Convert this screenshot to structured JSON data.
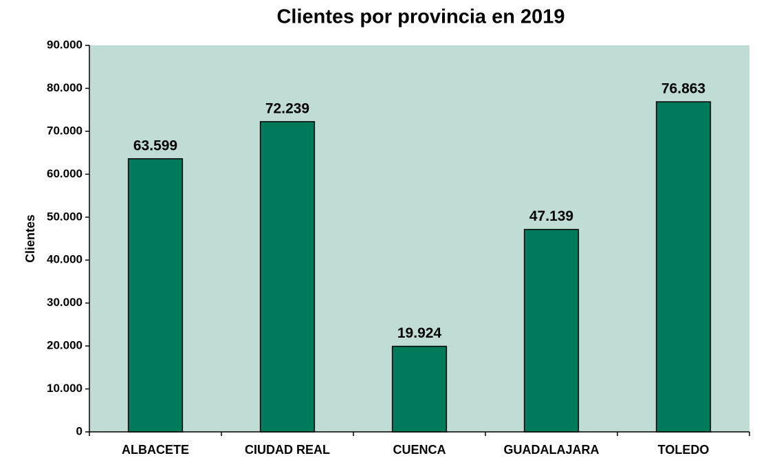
{
  "chart_data": {
    "type": "bar",
    "title": "Clientes por provincia en 2019",
    "y_label": "Clientes",
    "categories": [
      "ALBACETE",
      "CIUDAD REAL",
      "CUENCA",
      "GUADALAJARA",
      "TOLEDO"
    ],
    "values": [
      63599,
      72239,
      19924,
      47139,
      76863
    ],
    "value_labels": [
      "63.599",
      "72.239",
      "19.924",
      "47.139",
      "76.863"
    ],
    "color": "#007a5a",
    "background": "#c0ddd5",
    "ylim": [
      0,
      90000
    ],
    "yticks": [
      0,
      {
        "value": 10000,
        "label": "10.000"
      },
      {
        "value": 20000,
        "label": "20.000"
      },
      {
        "value": 30000,
        "label": "30.000"
      },
      {
        "value": 40000,
        "label": "40.000"
      },
      {
        "value": 50000,
        "label": "50.000"
      },
      {
        "value": 60000,
        "label": "60.000"
      },
      {
        "value": 70000,
        "label": "70.000"
      },
      {
        "value": 80000,
        "label": "80.000"
      },
      {
        "value": 90000,
        "label": "90.000"
      }
    ],
    "grid": false
  }
}
